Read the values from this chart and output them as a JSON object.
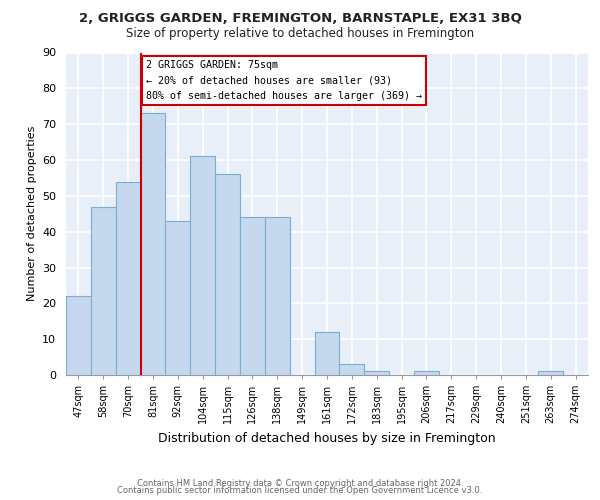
{
  "title": "2, GRIGGS GARDEN, FREMINGTON, BARNSTAPLE, EX31 3BQ",
  "subtitle": "Size of property relative to detached houses in Fremington",
  "xlabel": "Distribution of detached houses by size in Fremington",
  "ylabel": "Number of detached properties",
  "bar_color": "#c5d8ee",
  "bar_edge_color": "#7aafd4",
  "categories": [
    "47sqm",
    "58sqm",
    "70sqm",
    "81sqm",
    "92sqm",
    "104sqm",
    "115sqm",
    "126sqm",
    "138sqm",
    "149sqm",
    "161sqm",
    "172sqm",
    "183sqm",
    "195sqm",
    "206sqm",
    "217sqm",
    "229sqm",
    "240sqm",
    "251sqm",
    "263sqm",
    "274sqm"
  ],
  "values": [
    22,
    47,
    54,
    73,
    43,
    61,
    56,
    44,
    44,
    0,
    12,
    3,
    1,
    0,
    1,
    0,
    0,
    0,
    0,
    1,
    0
  ],
  "vline_x": 2.5,
  "vline_color": "#cc0000",
  "annotation_title": "2 GRIGGS GARDEN: 75sqm",
  "annotation_line1": "← 20% of detached houses are smaller (93)",
  "annotation_line2": "80% of semi-detached houses are larger (369) →",
  "ylim": [
    0,
    90
  ],
  "yticks": [
    0,
    10,
    20,
    30,
    40,
    50,
    60,
    70,
    80,
    90
  ],
  "bg_color": "#e8eff8",
  "grid_color": "#ffffff",
  "footer1": "Contains HM Land Registry data © Crown copyright and database right 2024.",
  "footer2": "Contains public sector information licensed under the Open Government Licence v3.0."
}
